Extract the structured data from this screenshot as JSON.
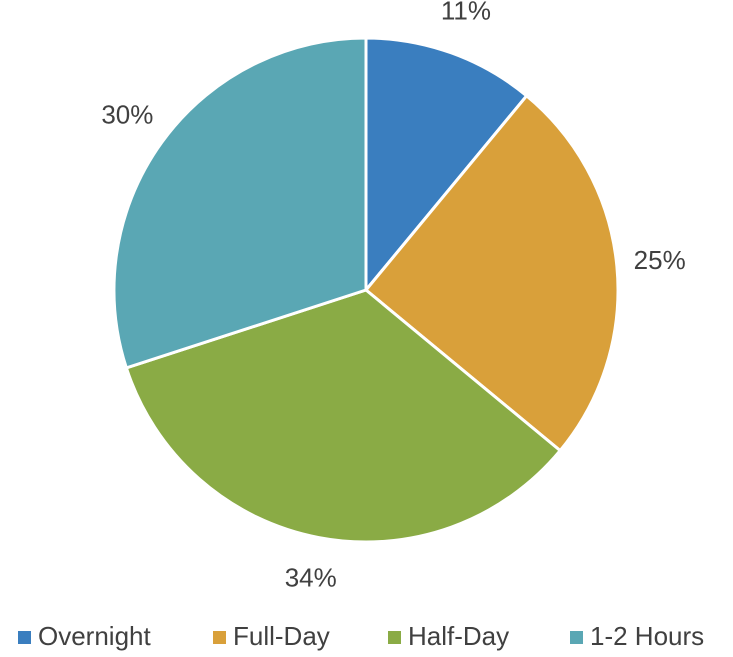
{
  "chart_data": {
    "type": "pie",
    "categories": [
      "Overnight",
      "Full-Day",
      "Half-Day",
      "1-2 Hours"
    ],
    "values": [
      11,
      25,
      34,
      30
    ],
    "value_labels": [
      "11%",
      "25%",
      "34%",
      "30%"
    ],
    "colors": [
      "#3a7ebf",
      "#d9a03a",
      "#8aab45",
      "#5aa7b4"
    ],
    "legend": "bottom"
  }
}
